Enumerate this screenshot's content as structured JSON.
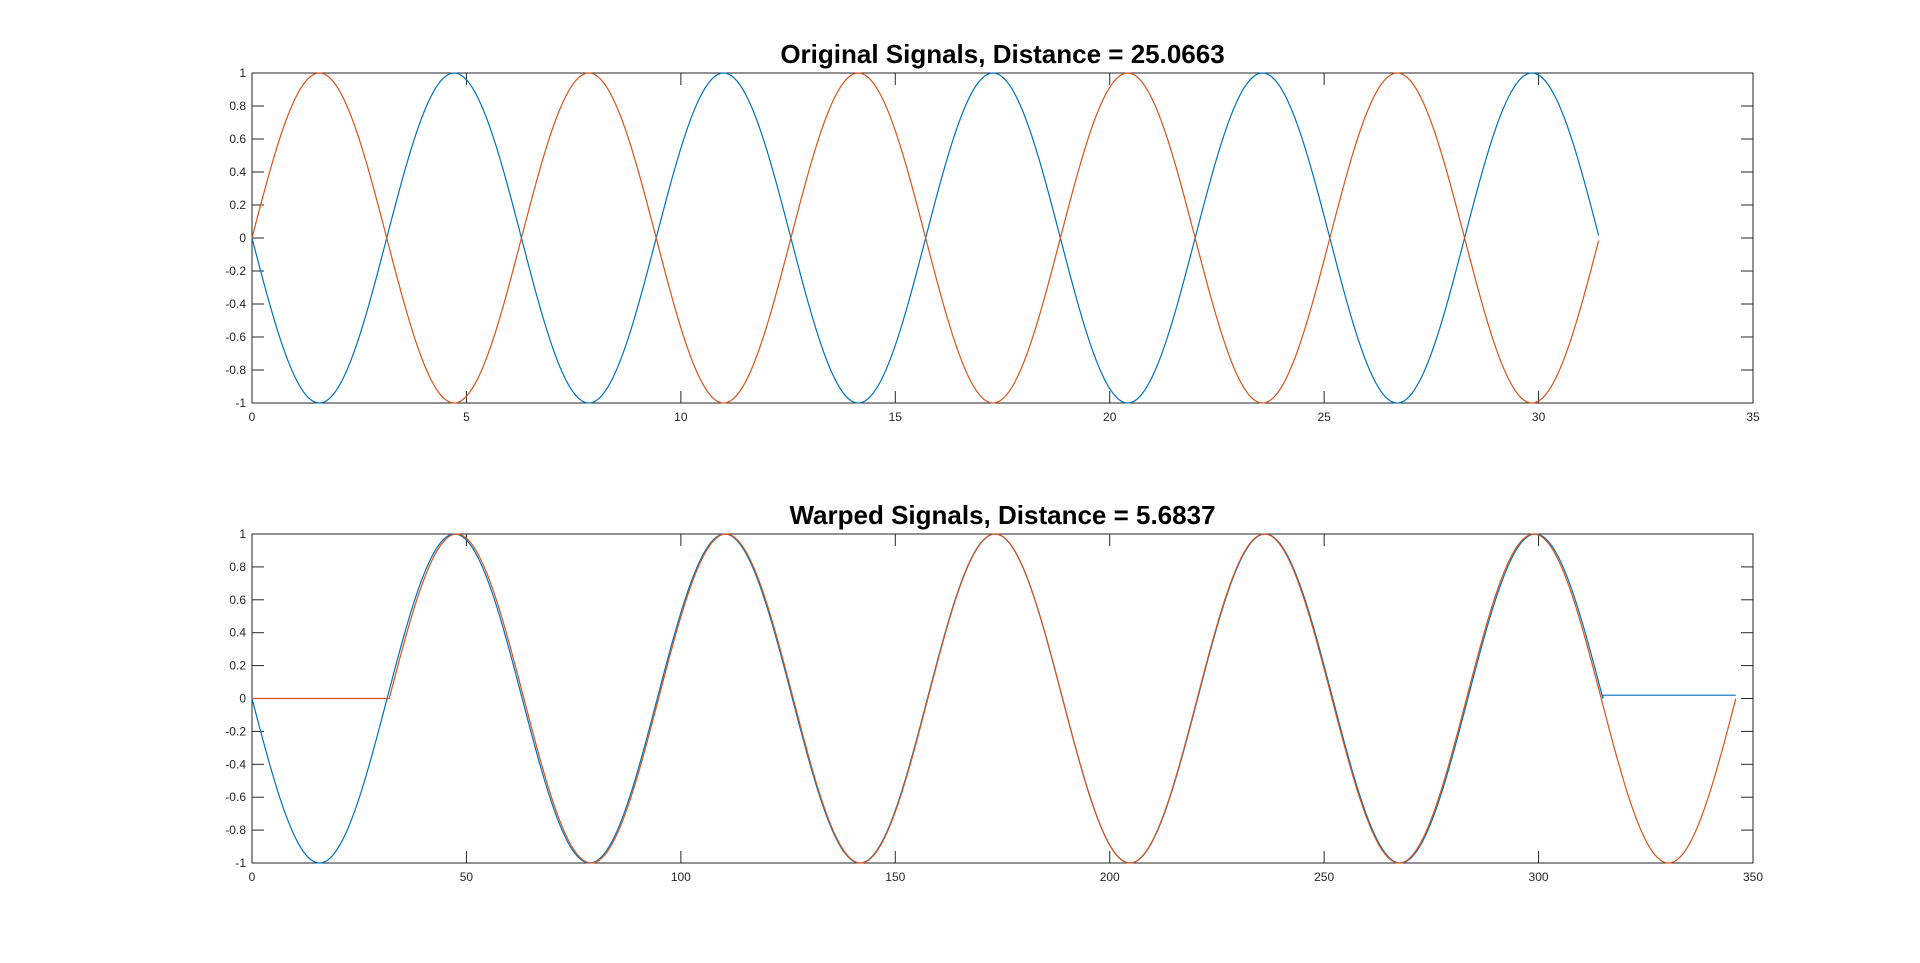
{
  "chart_data": [
    {
      "type": "line",
      "title": "Original Signals, Distance = 25.0663",
      "xlabel": "",
      "ylabel": "",
      "xlim": [
        0,
        35
      ],
      "ylim": [
        -1,
        1
      ],
      "xticks": [
        0,
        5,
        10,
        15,
        20,
        25,
        30,
        35
      ],
      "yticks": [
        1,
        0.8,
        0.6,
        0.4,
        0.2,
        0,
        -0.2,
        -0.4,
        -0.6,
        -0.8,
        -1
      ],
      "grid": false,
      "series": [
        {
          "function": "-sin",
          "x_range": [
            0,
            31.4
          ],
          "color": "#0072BD"
        },
        {
          "function": "sin",
          "x_range": [
            0,
            31.4
          ],
          "color": "#D95319"
        }
      ]
    },
    {
      "type": "line",
      "title": "Warped Signals, Distance = 5.6837",
      "xlabel": "",
      "ylabel": "",
      "xlim": [
        0,
        350
      ],
      "ylim": [
        -1,
        1
      ],
      "xticks": [
        0,
        50,
        100,
        150,
        200,
        250,
        300,
        350
      ],
      "yticks": [
        1,
        0.8,
        0.6,
        0.4,
        0.2,
        0,
        -0.2,
        -0.4,
        -0.6,
        -0.8,
        -1
      ],
      "grid": false,
      "series": [
        {
          "function": "-sin",
          "x_range": [
            0,
            315
          ],
          "hold_after": 0.02,
          "hold_until": 346,
          "color": "#0072BD"
        },
        {
          "function": "sin",
          "x_range": [
            32,
            346
          ],
          "hold_before": 0,
          "color": "#D95319"
        }
      ]
    }
  ]
}
